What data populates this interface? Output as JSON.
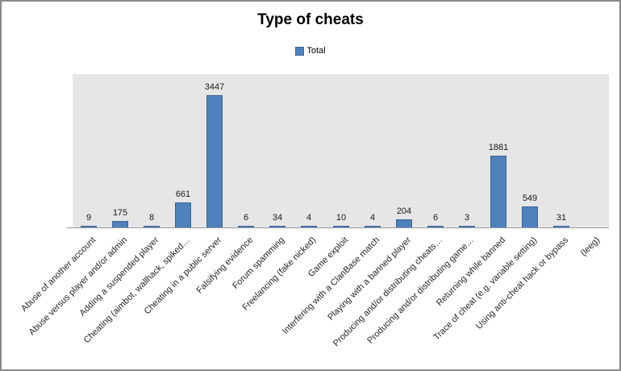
{
  "window": {
    "background": "#ffffff",
    "frame_border_color": "#8a8a8a"
  },
  "chart_data": {
    "type": "bar",
    "title": "Type of cheats",
    "legend": {
      "position": "top-center",
      "entries": [
        "Total"
      ]
    },
    "categories": [
      "Abuse of another account",
      "Abuse versus player and/or admin",
      "Adding a suspended player",
      "Cheating (aimbot, wallhack, spiked…",
      "Cheating in a public server",
      "Falsifying evidence",
      "Forum spamming",
      "Freelancing (fake nicked)",
      "Game exploit",
      "Interfering with a ClanBase match",
      "Playing with a banned player",
      "Producing and/or distributing cheats…",
      "Producing and/or distributing game…",
      "Returning while banned",
      "Trace of cheat (e.g. variable setting)",
      "Using anti-cheat hack or bypass",
      "(leeg)"
    ],
    "series": [
      {
        "name": "Total",
        "values": [
          9,
          175,
          8,
          661,
          3447,
          6,
          34,
          4,
          10,
          4,
          204,
          6,
          3,
          1881,
          549,
          31,
          null
        ]
      }
    ],
    "xlabel": "",
    "ylabel": "",
    "ylim": [
      0,
      4000
    ],
    "grid": false,
    "data_labels": true,
    "colors": {
      "bar_fill": "#4f81bd",
      "bar_border": "#3a6598",
      "plot_background": "#e6e6e6",
      "axis_line": "#9b9b9b",
      "title_text": "#000000",
      "label_text": "#262626"
    }
  }
}
